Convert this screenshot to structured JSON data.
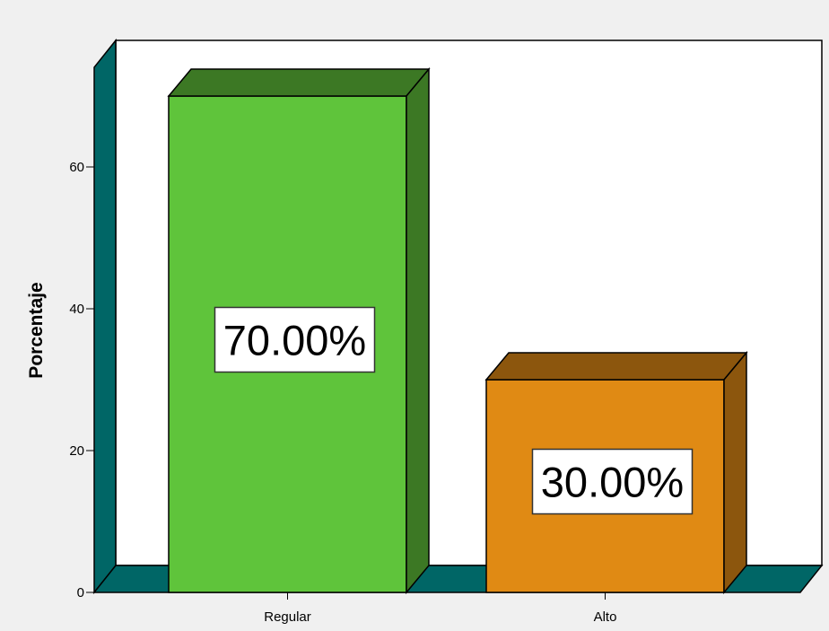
{
  "chart_data": {
    "type": "bar",
    "categories": [
      "Regular",
      "Alto"
    ],
    "values": [
      70.0,
      30.0
    ],
    "data_labels": [
      "70.00%",
      "30.00%"
    ],
    "title": "",
    "xlabel": "",
    "ylabel": "Porcentaje",
    "ylim": [
      0,
      70
    ],
    "yticks": [
      0,
      20,
      40,
      60
    ],
    "grid": false,
    "style": "3d",
    "colors": {
      "bar_front": [
        "#5fc43b",
        "#e08a14"
      ],
      "bar_top": [
        "#3c7824",
        "#8c560d"
      ],
      "bar_side": [
        "#3c7824",
        "#8c560d"
      ],
      "floor_wall": "#006666",
      "plot_background": "#ffffff",
      "frame_background": "#f0f0f0"
    }
  }
}
